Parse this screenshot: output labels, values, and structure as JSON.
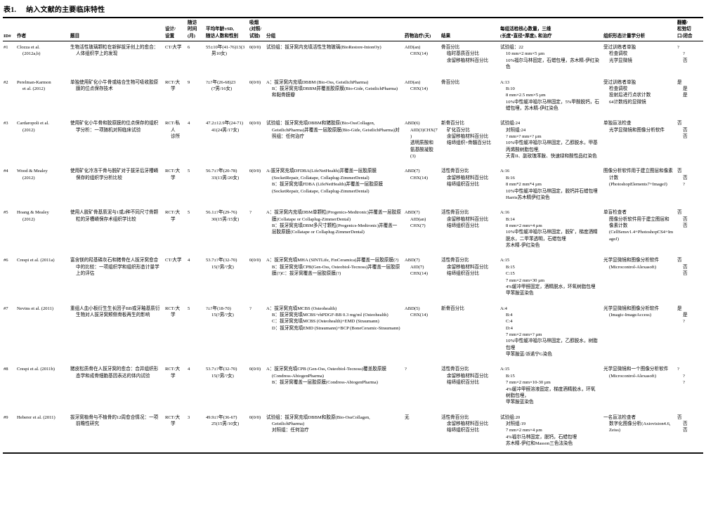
{
  "doc": {
    "table_label": "表1.",
    "table_title": "纳入文献的主要临床特性"
  },
  "table": {
    "columns": [
      {
        "key": "id",
        "label": "ID#"
      },
      {
        "key": "author",
        "label": "作者"
      },
      {
        "key": "title",
        "label": "题目"
      },
      {
        "key": "design",
        "label": "设计/\n设置"
      },
      {
        "key": "followup",
        "label": "随访\n时间\n(月)"
      },
      {
        "key": "age",
        "label": "平均年龄±SD,\n随访人数和性别"
      },
      {
        "key": "smoking",
        "label": "吸烟\n(对照/\n试验)"
      },
      {
        "key": "groups",
        "label": "分组"
      },
      {
        "key": "drugs",
        "label": "药物治疗(天)"
      },
      {
        "key": "results",
        "label": "结果"
      },
      {
        "key": "biopsy",
        "label": "每组活检核心数量，三维\n(长度*直径*厚度), 和治疗"
      },
      {
        "key": "analysis",
        "label": "组织形态计量学分析"
      },
      {
        "key": "flap",
        "label": "翻瓣/\n松弛切\n口/闭合"
      }
    ],
    "rows": [
      {
        "id": "#1",
        "author": "Clozza et al.\n(2012a,b)",
        "title": "生物活性玻璃颗粒在新鲜拔牙创上的愈合：人体组织学上的发现",
        "design": "CT/大学",
        "followup": "6",
        "age": "55±10年(41-76)13(3\n男10女)",
        "smoking": "0(0/0)",
        "groups": "试验组：拔牙窝内充填活性生物玻璃(BioRestore-InionOy)",
        "drugs": "AID(an)\nCHX(14)",
        "results": "骨百分比\n临时基质百分比\n余留移植材料百分比",
        "biopsy": "试验组：22\n10 mm×2 mm×5 µm\n10%福尔马林固定，石蜡包埋，苏木精-伊红染色",
        "analysis": "受过训练者单独\n检查调校\n光学显微镜",
        "flap": "?\n?\n否"
      },
      {
        "id": "#2",
        "author": "Perelman-Karmon\net al. (2012)",
        "title": "单独使用矿化小牛骨或结合生物可吸收胶原膜的位点保存技术",
        "design": "RCT/大学",
        "followup": "9",
        "age": "?±?年(26-68)23\n(7男/16女)",
        "smoking": "0(0/0)",
        "groups": "A：拔牙窝内充填DBBM (Bio-Oss, GeistlichPharma)\nB：拔牙窝充填DBBM并覆盖胶原膜(Bio-Gide, GeistlichPharma)和黏骨膜瓣",
        "drugs": "AID(an)\nCHX(14)",
        "results": "骨百分比",
        "biopsy": "A:13\nB:10\n8 mm×2.5 mm×5 µm\n10%中性缓冲福尔马林固定，5%甲酸脱钙，石蜡包埋，苏木精-伊红染色",
        "analysis": "受过训练者单独\n检查调校\n投射后进行点状计数\n64计数线的显微镜",
        "flap": "是\n是\n是"
      },
      {
        "id": "#3",
        "author": "Cardaropoli et al.\n(2012)",
        "title": "使用矿化小牛骨和胶原膜的位点保存的组织学分析：一项随机对照临床试验",
        "design": "RCT/私人\n诊所",
        "followup": "4",
        "age": "47.2±12.9年(24-71)\n41(24男/17女)",
        "smoking": "0(0/0)",
        "groups": "试验组：拔牙窝充填DBBM和猪胶原(Bio-OssCollagen, GeistlichPharma)并覆盖一层胶原膜(Bio-Gide, GeistlichPharma)对照组：任何治疗",
        "drugs": "ABD(6)\nAID(3)CHX(7)\n透明质酸和氨基酸凝胶(3)",
        "results": "新骨百分比\n矿化百分比\n余留移植材料百分比\n结缔组织+骨髓百分比",
        "biopsy": "试验组:24\n对照组:24\n? mm×? mm×? µm\n10%中性缓冲福尔马林固定，乙醇脱水，甲基丙烯酸树脂包埋,\n天青II、副玫瑰苯胺、快速绿和酸性品红染色",
        "analysis": "单独盲法检查\n光学显微镜和图像分析软件",
        "flap": "否\n否\n否"
      },
      {
        "id": "#4",
        "author": "Wood & Mealey\n(2012)",
        "title": "使用矿化冷冻干骨与脱矿对于拔牙后牙槽嵴保存的组织学分析比较",
        "design": "RCT/大学",
        "followup": "5",
        "age": "56.7±?年(20-78)\n33(13男/20女)",
        "smoking": "0(0/0)",
        "groups": "A:拔牙窝充填DFDBA(LifeNetHealth)并覆盖一层胶原膜(SocketRepair, Collatape, Collaplug-ZimmerDental)\nB：拔牙窝充填FDBA (LifeNetHealth)并覆盖一层胶原膜(SocketRepair, Collatape, Collaplug-ZimmerDental)",
        "drugs": "ABD(7)\nCHX(14)",
        "results": "活性骨百分比\n余留移植材料百分比\n结缔组织百分比",
        "biopsy": "A:16\nB:16\n8 mm*2 mm*4 µm\n10%中性缓冲福尔马林固定，脱钙并石蜡包埋\nHarris苏木精伊红染色",
        "analysis": "图像分析软件用于建立图层和像素计数(PhotoshopElements7+ImageJ)",
        "flap": "否\n否\n?"
      },
      {
        "id": "#5",
        "author": "Hoang & Mealey\n(2012)",
        "title": "使用人脱矿骨基质泥与1或2种不同尺寸骨颗粒的牙槽嵴保存术组织学比较",
        "design": "RCT/大学",
        "followup": "5",
        "age": "56.1±?年(29-76)\n30(15男/15女)",
        "smoking": "?",
        "groups": "A：拔牙窝内充填DBM单颗粒(Progenics-Medtronic)并覆盖一层胶原膜(Collatape or Collaplug-ZimmerDental)\nB：拔牙窝充填DBM多尺寸颗粒(Progenics-Medtronic)并覆盖一层胶原膜(Collatape or Collaplug-ZimmerDental)",
        "drugs": "ABD(7)\nAID(an)\nCHX(7)",
        "results": "活性骨百分比\n余留移植材料百分比\n结缔组织百分比",
        "biopsy": "A:16\nB:14\n8 mm×2 mm×4 µm\n10%中性缓冲福尔马林固定，脱矿，梯度酒精脱水，二甲苯透明，石蜡包埋\n苏木精-伊红染色",
        "analysis": "单盲检查者\n图像分析软件用于建立图层和像素计数(CellSensv1.4+PhotoshopCS4+ImageJ)",
        "flap": "否\n否\n否"
      },
      {
        "id": "#6",
        "author": "Crespi et al. (2011a)",
        "title": "富含镁的羟基磷灰石和猪骨在人拔牙窝愈合中的比较：一项组织学和组织形态计量学上的评估",
        "design": "CT/大学",
        "followup": "4",
        "age": "53.7±?年(32-70)\n15(?男/?女)",
        "smoking": "0(0/0)",
        "groups": "A：拔牙窝充填MHA (SINTLife, FinCeramica)并覆盖一层胶原膜(?)\nB：拔牙窝充填CPB(Gen-Oss, Osteobiol-Tecnoss)并覆盖一层胶原膜(?)C：拔牙窝覆盖一层胶原膜(?)",
        "drugs": "ABD(7)\nAID(7)\nCHX(14)",
        "results": "活性骨百分比\n余留移植材料百分比\n结缔组织百分比",
        "biopsy": "A:15\nB:15\nC:15\n7 mm×2 mm×30 µm\n4%缓冲甲醛固定，酒精脱水，环氧树脂包埋\n甲苯胺蓝染色",
        "analysis": "光学显微镜和图像分析软件(Microcontrol-Alexasoft)",
        "flap": "否\n否\n否"
      },
      {
        "id": "#7",
        "author": "Nevins et al. (2011)",
        "title": "重组人血小板衍生生长因子BB或牙釉基质衍生物对人拔牙窝颊侧骨板再生的影响",
        "design": "RCT/大学",
        "followup": "5",
        "age": "?±?年(18-70)\n15(?男/?女)",
        "smoking": "?",
        "groups": "A：拔牙窝充填MCBS (Osteohealth)\nB：拔牙窝充填MCBS+rhPDGF-BB 0.3 mg/ml (Osteohealth)\nC：拔牙窝充填MCBS (Osteohealth)+EMD (Straumann)\nD：拔牙窝充填EMD (Straumann)+BCP (BoneCeramic-Straumann)",
        "drugs": "ABD(5)\nCHX(14)",
        "results": "新骨百分比",
        "biopsy": "A:4\nB:4\nC:4\nD:4\n7 mm×2 mm×? µm\n10%中性缓冲福尔马林固定，乙醇脱水，树脂包埋\n甲苯胺蓝/派诺宁G染色",
        "analysis": "光学显微镜和图像分析软件(Imagic-ImageAccess)",
        "flap": "是\n是\n?"
      },
      {
        "id": "#8",
        "author": "Crespi et al. (2011b)",
        "title": "猪皮松质骨在人拔牙窝的愈合：合并组织形态学和成骨细胞基因表达的体内试验",
        "design": "RCT/大学",
        "followup": "4",
        "age": "53.7±?年(32-70)\n15(?男/?女)",
        "smoking": "0(0/0)",
        "groups": "A：拔牙窝充填CPB (Gen-Oss, Osteobiol-Tecnoss)覆盖胶原膜(Condress-AbiogenPharma)\nB：拔牙窝覆盖一层胶原膜(Condress-AbiogenPharma)",
        "drugs": "?",
        "results": "活性骨百分比\n余留移植材料百分比\n结缔组织百分比",
        "biopsy": "A:15\nB:15\n7 mm×2 mm×10-30 µm\n4%缓冲甲醛溶液固定，梯度酒精脱水，环氧树脂包埋，\n甲苯胺蓝染色",
        "analysis": "光学显微镜和一个图像分析软件(Microcontrol-Alexasoft)",
        "flap": "?\n?\n?"
      },
      {
        "id": "#9",
        "author": "Heberer et al. (2011)",
        "title": "拔牙窝植骨与不植骨的12周愈合情况：一项前瞻性研究",
        "design": "RCT/大学",
        "followup": "3",
        "age": "49.9±?年(36-67)\n25(15男/10女)",
        "smoking": "0(0/0)",
        "groups": "试验组：拔牙窝充填DBBM和胶原(Bio-OssCollagen, GeistlichPharma)\n对照组：任何治疗",
        "drugs": "无",
        "results": "活性骨百分比\n余留移植材料百分比\n结缔组织百分比",
        "biopsy": "试验组:20\n对照组:19\n7 mm×2 mm×4 µm\n4%福尔马林固定，脱钙，石蜡包埋\n苏木精-伊红和Masson三色法染色",
        "analysis": "一名盲法检查者\n数字化图像分析(Axiovision4.6, Zeiss)",
        "flap": "否\n否\n否"
      }
    ]
  }
}
